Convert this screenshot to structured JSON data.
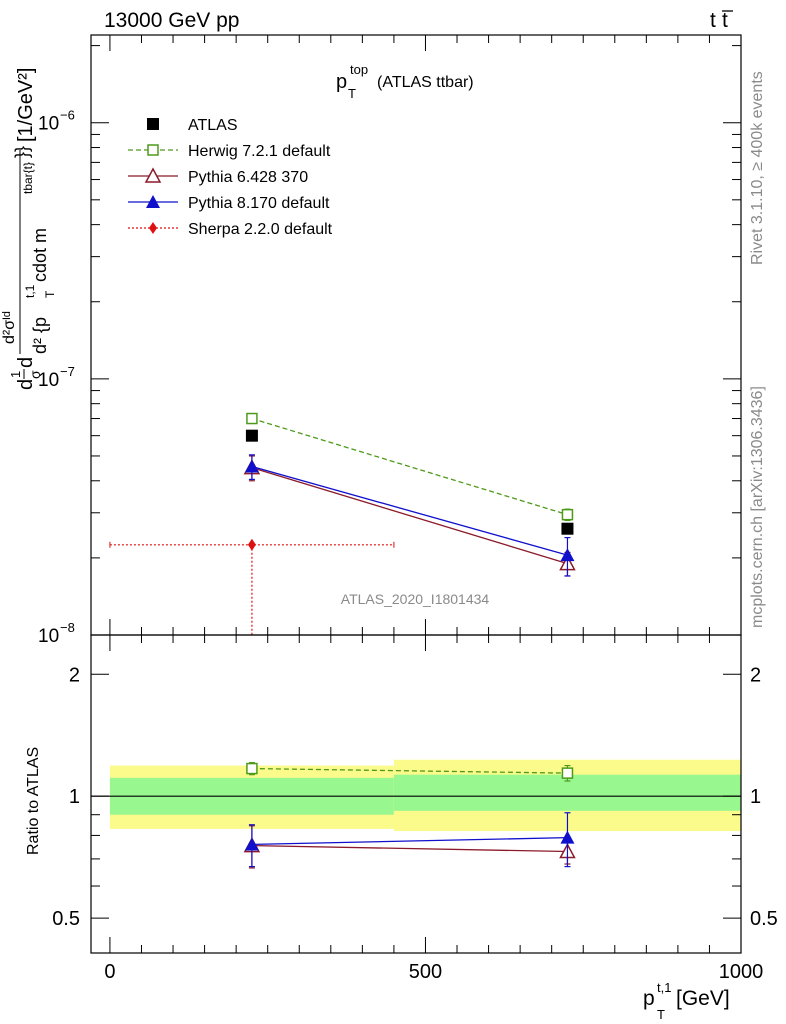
{
  "header": {
    "left": "13000 GeV pp",
    "right_base": "t",
    "right_bar": "t"
  },
  "title": {
    "p": "p",
    "sup": "top",
    "sub": "T",
    "rest": "(ATLAS ttbar)"
  },
  "side": {
    "rivet": "Rivet 3.1.10, ≥ 400k events",
    "mcplots": "mcplots.cern.ch [arXiv:1306.3436]"
  },
  "watermark": "ATLAS_2020_I1801434",
  "ylabel_main": {
    "lead": "d",
    "frac_top": "1",
    "frac_bot": "σ",
    "d": "d",
    "num": "d²σᴵᵈ",
    "den": "d² {p",
    "den_sup": "t,1",
    "den_sub": "T",
    "den_rest": " cdot m",
    "den_sup2": "tbar{t}",
    "den_close": "}}",
    "units": " [1/GeV²]"
  },
  "ylabel_ratio": "Ratio to ATLAS",
  "xlabel": {
    "p": "p",
    "sup": "t,1",
    "sub": "T",
    "units": " [GeV]"
  },
  "main_yticks": [
    {
      "value": 1e-08,
      "base": "10",
      "exp": "−8"
    },
    {
      "value": 1e-07,
      "base": "10",
      "exp": "−7"
    },
    {
      "value": 1e-06,
      "base": "10",
      "exp": "−6"
    }
  ],
  "ratio_yticks": [
    "0.5",
    "1",
    "2"
  ],
  "xticks": [
    "0",
    "500",
    "1000"
  ],
  "colors": {
    "atlas": "#000000",
    "herwig": "#4d9a1a",
    "pythia6": "#8b1a2a",
    "pythia8": "#1010cc",
    "sherpa": "#dd1111",
    "band_green": "#99f78f",
    "band_yellow": "#fbfb8c"
  },
  "chart_data": {
    "type": "line",
    "x_axis": {
      "label": "p_T^{t,1} [GeV]",
      "range": [
        -30,
        1000
      ]
    },
    "main": {
      "y_scale": "log",
      "y_range": [
        1e-08,
        2.2e-06
      ],
      "series": [
        {
          "name": "ATLAS",
          "legend": "ATLAS",
          "marker": "filled-square",
          "points": [
            {
              "x": 225,
              "y": 6e-08
            },
            {
              "x": 725,
              "y": 2.6e-08
            }
          ]
        },
        {
          "name": "Herwig",
          "legend": "Herwig 7.2.1 default",
          "marker": "open-square",
          "style": "dashed",
          "points": [
            {
              "x": 225,
              "y": 7e-08,
              "err": 2e-09
            },
            {
              "x": 725,
              "y": 2.95e-08,
              "err": 1.5e-09
            }
          ]
        },
        {
          "name": "Pythia6",
          "legend": "Pythia 6.428 370",
          "marker": "open-triangle",
          "style": "solid",
          "points": [
            {
              "x": 225,
              "y": 4.5e-08,
              "err": 5e-09
            },
            {
              "x": 725,
              "y": 1.9e-08,
              "err": 2e-09
            }
          ]
        },
        {
          "name": "Pythia8",
          "legend": "Pythia 8.170 default",
          "marker": "filled-triangle",
          "style": "solid",
          "points": [
            {
              "x": 225,
              "y": 4.55e-08,
              "err": 5e-09
            },
            {
              "x": 725,
              "y": 2.05e-08,
              "err": 3.5e-09
            }
          ]
        },
        {
          "name": "Sherpa",
          "legend": "Sherpa 2.2.0 default",
          "marker": "filled-diamond",
          "style": "dotted",
          "points": [
            {
              "x": 225,
              "y": 2.25e-08,
              "xerr": [
                0,
                450
              ],
              "err_down_to_axis": true
            }
          ]
        }
      ]
    },
    "ratio": {
      "y_label": "Ratio to ATLAS",
      "y_scale": "log",
      "y_range": [
        0.41,
        2.5
      ],
      "bands": [
        {
          "x": [
            0,
            450
          ],
          "green": [
            0.9,
            1.11
          ],
          "yellow": [
            0.83,
            1.19
          ]
        },
        {
          "x": [
            450,
            1000
          ],
          "green": [
            0.92,
            1.13
          ],
          "yellow": [
            0.82,
            1.23
          ]
        }
      ],
      "series": [
        {
          "name": "Herwig",
          "points": [
            {
              "x": 225,
              "y": 1.17,
              "err": 0.04
            },
            {
              "x": 725,
              "y": 1.14,
              "err": 0.05
            }
          ]
        },
        {
          "name": "Pythia6",
          "points": [
            {
              "x": 225,
              "y": 0.755,
              "err": 0.09
            },
            {
              "x": 725,
              "y": 0.73,
              "err": 0.05
            }
          ]
        },
        {
          "name": "Pythia8",
          "points": [
            {
              "x": 225,
              "y": 0.76,
              "err": 0.09
            },
            {
              "x": 725,
              "y": 0.79,
              "err": 0.12
            }
          ]
        }
      ]
    }
  }
}
